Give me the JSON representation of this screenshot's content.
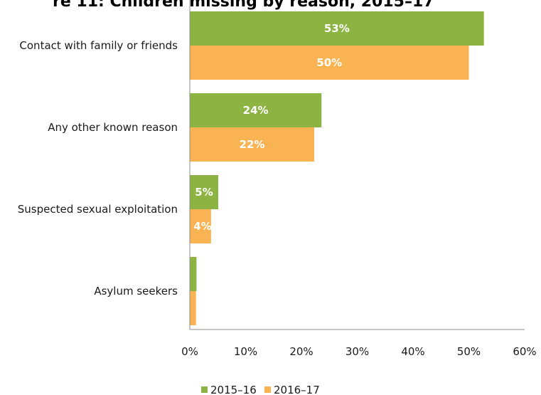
{
  "chart_data": {
    "type": "bar",
    "orientation": "horizontal",
    "title": "re 11: Children missing by reason, 2015–17",
    "categories": [
      "Contact with family or friends",
      "Any other known reason",
      "Suspected sexual exploitation",
      "Asylum seekers"
    ],
    "series": [
      {
        "name": "2015–16",
        "color": "#8db442",
        "values": [
          52.7,
          23.6,
          5.1,
          1.2
        ],
        "labels": [
          "53%",
          "24%",
          "5%",
          ""
        ]
      },
      {
        "name": "2016–17",
        "color": "#f9b352",
        "values": [
          50.0,
          22.3,
          3.8,
          1.1
        ],
        "labels": [
          "50%",
          "22%",
          "4%",
          ""
        ]
      }
    ],
    "xlim": [
      0,
      60
    ],
    "xticks": [
      0,
      10,
      20,
      30,
      40,
      50,
      60
    ],
    "xtick_labels": [
      "0%",
      "10%",
      "20%",
      "30%",
      "40%",
      "50%",
      "60%"
    ],
    "legend_position": "bottom",
    "grid": false
  }
}
